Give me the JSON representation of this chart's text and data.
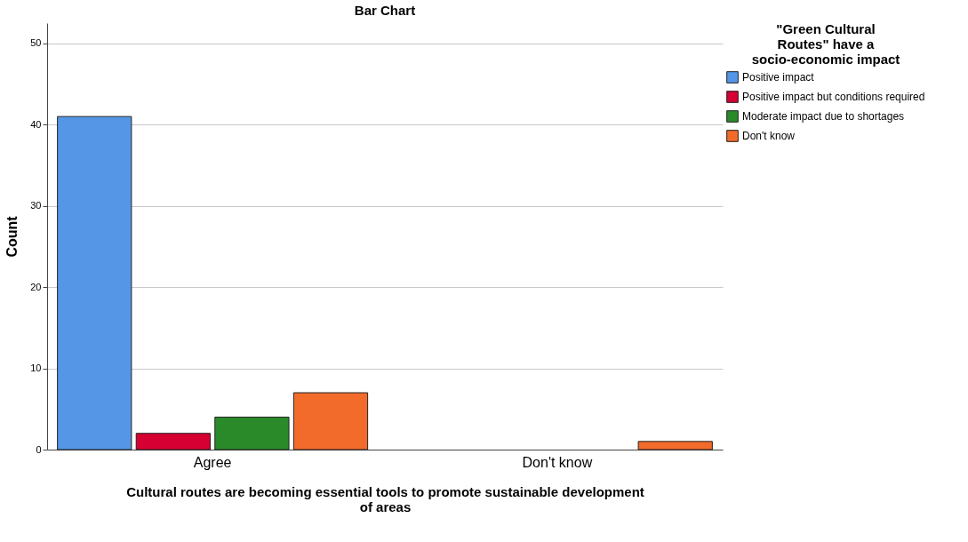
{
  "chart_data": {
    "type": "bar",
    "title": "Bar Chart",
    "xlabel": "Cultural routes are becoming essential tools to promote sustainable development of areas",
    "ylabel": "Count",
    "legend_title": "\"Green Cultural Routes\" have a socio-economic impact",
    "categories": [
      "Agree",
      "Don't know"
    ],
    "series": [
      {
        "name": "Positive impact",
        "color": "#5596e6",
        "values": [
          41,
          0
        ]
      },
      {
        "name": "Positive impact but conditions required",
        "color": "#d60032",
        "values": [
          2,
          0
        ]
      },
      {
        "name": "Moderate impact due to shortages",
        "color": "#2a8a2a",
        "values": [
          4,
          0
        ]
      },
      {
        "name": "Don't know",
        "color": "#f26b2a",
        "values": [
          7,
          1
        ]
      }
    ],
    "ylim": [
      0,
      52.5
    ],
    "yticks": [
      0,
      10,
      20,
      30,
      40,
      50
    ],
    "grid": "y",
    "legend": "top right"
  }
}
